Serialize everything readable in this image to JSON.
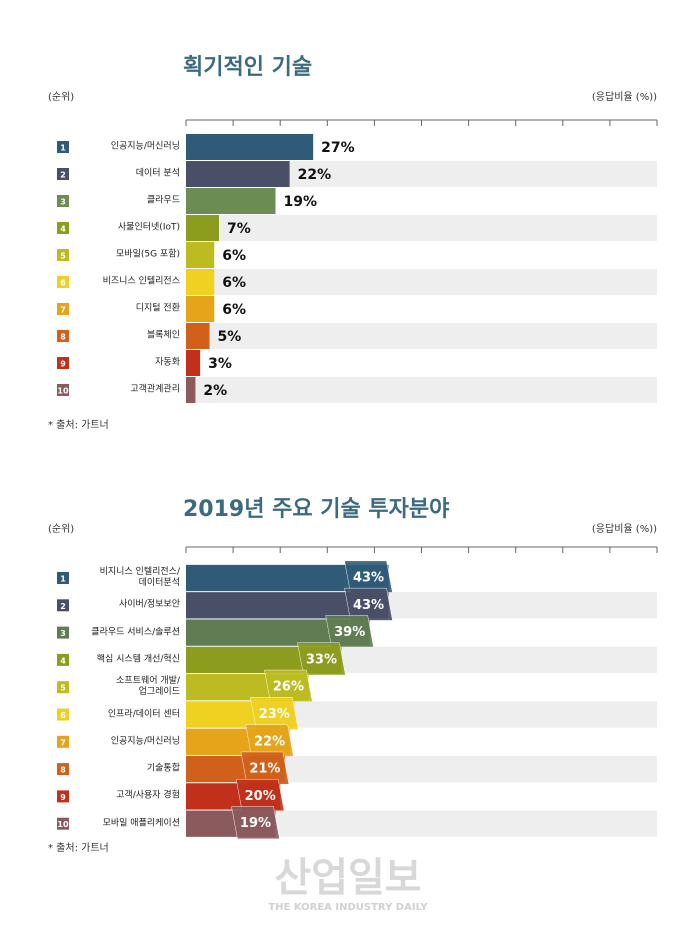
{
  "chart_data": [
    {
      "type": "bar",
      "title": "획기적인 기술",
      "rank_label": "(순위)",
      "value_axis_label": "(응답비율 (%))",
      "ranks": [
        1,
        2,
        3,
        4,
        5,
        6,
        7,
        8,
        9,
        10
      ],
      "categories": [
        "인공지능/머신러닝",
        "데이터 분석",
        "클라우드",
        "사물인터넷(IoT)",
        "모바일(5G 포함)",
        "비즈니스 인텔리전스",
        "디지털 전환",
        "블록체인",
        "자동화",
        "고객관계관리"
      ],
      "values": [
        27,
        22,
        19,
        7,
        6,
        6,
        6,
        5,
        3,
        2
      ],
      "value_labels": [
        "27%",
        "22%",
        "19%",
        "7%",
        "6%",
        "6%",
        "6%",
        "5%",
        "3%",
        "2%"
      ],
      "colors": [
        "#2f5b78",
        "#4a4f68",
        "#6b8c52",
        "#8c9c1e",
        "#bcbc22",
        "#f0d020",
        "#e6a41a",
        "#d0601a",
        "#c0301a",
        "#8a5a5c"
      ],
      "xlim": [
        0,
        100
      ],
      "xticks": [
        0,
        10,
        20,
        30,
        40,
        50,
        60,
        70,
        80,
        90,
        100
      ],
      "source": "* 출처: 가트너"
    },
    {
      "type": "bar",
      "title": "2019년 주요 기술 투자분야",
      "rank_label": "(순위)",
      "value_axis_label": "(응답비율 (%))",
      "ranks": [
        1,
        2,
        3,
        4,
        5,
        6,
        7,
        8,
        9,
        10
      ],
      "categories": [
        "비지니스 인텔리전스/\n데이터분석",
        "사이버/정보보안",
        "클라우드 서비스/솔루션",
        "핵심 시스템 개선/혁신",
        "소프트웨어 개발/\n업그레이드",
        "인프라/데이터 센터",
        "인공지능/머신러닝",
        "기술통합",
        "고객/사용자 경험",
        "모바일 애플리케이션"
      ],
      "values": [
        43,
        43,
        39,
        33,
        26,
        23,
        22,
        21,
        20,
        19
      ],
      "value_labels": [
        "43%",
        "43%",
        "39%",
        "33%",
        "26%",
        "23%",
        "22%",
        "21%",
        "20%",
        "19%"
      ],
      "colors": [
        "#2f5b78",
        "#4a4f68",
        "#5f7c52",
        "#8c9c1e",
        "#bcbc22",
        "#f0d020",
        "#e6a41a",
        "#d0601a",
        "#c0301a",
        "#8a5a5c"
      ],
      "xlim": [
        0,
        100
      ],
      "xticks": [
        0,
        10,
        20,
        30,
        40,
        50,
        60,
        70,
        80,
        90,
        100
      ],
      "source": "* 출처: 가트너"
    }
  ],
  "watermark": {
    "title": "산업일보",
    "subtitle": "THE KOREA INDUSTRY DAILY"
  }
}
